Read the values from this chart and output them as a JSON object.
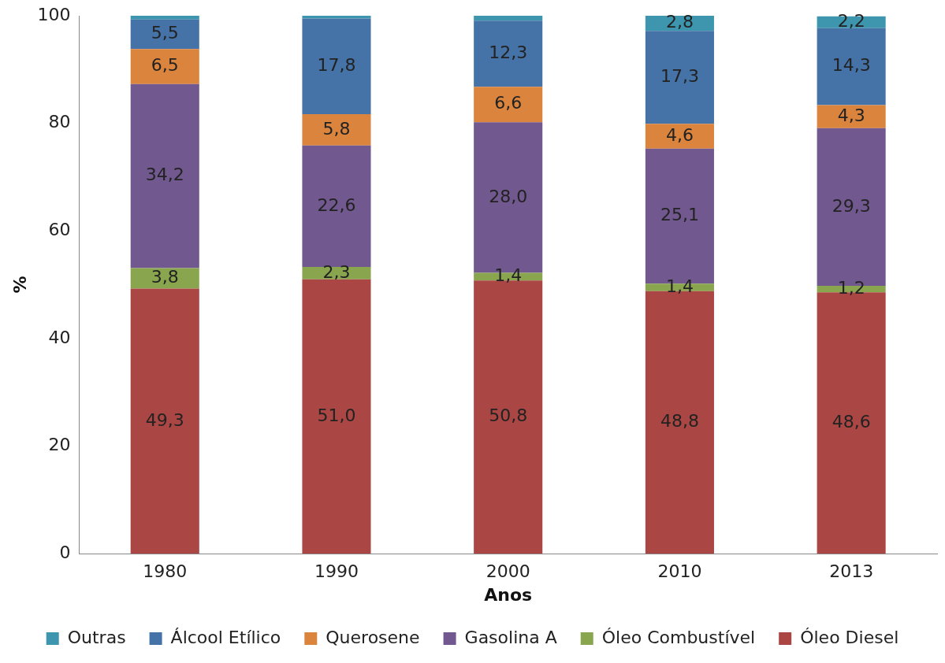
{
  "chart_data": {
    "type": "bar",
    "stacked": true,
    "xlabel": "Anos",
    "ylabel": "%",
    "categories": [
      "1980",
      "1990",
      "2000",
      "2010",
      "2013"
    ],
    "ylim": [
      0,
      100
    ],
    "yticks": [
      0,
      20,
      40,
      60,
      80,
      100
    ],
    "grid": false,
    "legend": "bottom",
    "series": [
      {
        "name": "Óleo Diesel",
        "color": "#aa4643",
        "values": [
          49.3,
          51.0,
          50.8,
          48.8,
          48.6
        ],
        "value_labels": [
          "49,3",
          "51,0",
          "50,8",
          "48,8",
          "48,6"
        ]
      },
      {
        "name": "Óleo Combustível",
        "color": "#89a54e",
        "values": [
          3.8,
          2.3,
          1.4,
          1.4,
          1.2
        ],
        "value_labels": [
          "3,8",
          "2,3",
          "1,4",
          "1,4",
          "1,2"
        ]
      },
      {
        "name": "Gasolina A",
        "color": "#71588f",
        "values": [
          34.2,
          22.6,
          28.0,
          25.1,
          29.3
        ],
        "value_labels": [
          "34,2",
          "22,6",
          "28,0",
          "25,1",
          "29,3"
        ]
      },
      {
        "name": "Querosene",
        "color": "#db843d",
        "values": [
          6.5,
          5.8,
          6.6,
          4.6,
          4.3
        ],
        "value_labels": [
          "6,5",
          "5,8",
          "6,6",
          "4,6",
          "4,3"
        ]
      },
      {
        "name": "Álcool Etílico",
        "color": "#4572a7",
        "values": [
          5.5,
          17.8,
          12.3,
          17.3,
          14.3
        ],
        "value_labels": [
          "5,5",
          "17,8",
          "12,3",
          "17,3",
          "14,3"
        ]
      },
      {
        "name": "Outras",
        "color": "#3d96ae",
        "values": [
          0.7,
          0.5,
          0.9,
          2.8,
          2.2
        ],
        "value_labels": [
          null,
          null,
          null,
          "2,8",
          "2,2"
        ]
      }
    ]
  }
}
